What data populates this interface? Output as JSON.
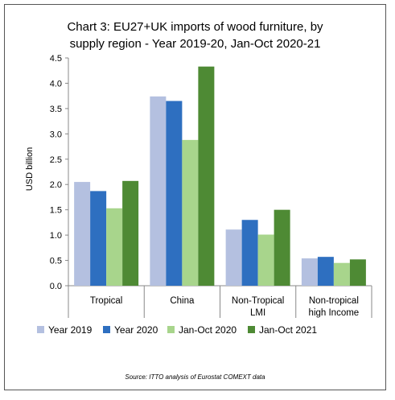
{
  "chart_data": {
    "type": "bar",
    "title_line1": "Chart 3: EU27+UK imports of wood furniture, by",
    "title_line2": "supply region - Year 2019-20, Jan-Oct 2020-21",
    "ylabel": "USD billion",
    "ylim": [
      0,
      4.5
    ],
    "yticks": [
      "0.0",
      "0.5",
      "1.0",
      "1.5",
      "2.0",
      "2.5",
      "3.0",
      "3.5",
      "4.0",
      "4.5"
    ],
    "categories": [
      [
        "Tropical"
      ],
      [
        "China"
      ],
      [
        "Non-Tropical",
        "LMI"
      ],
      [
        "Non-tropical",
        "high Income"
      ]
    ],
    "series": [
      {
        "name": "Year 2019",
        "color": "#b4c0e0",
        "values": [
          2.05,
          3.74,
          1.11,
          0.54
        ]
      },
      {
        "name": "Year 2020",
        "color": "#2e6fc0",
        "values": [
          1.87,
          3.65,
          1.3,
          0.57
        ]
      },
      {
        "name": "Jan-Oct 2020",
        "color": "#a8d58c",
        "values": [
          1.53,
          2.88,
          1.01,
          0.45
        ]
      },
      {
        "name": "Jan-Oct 2021",
        "color": "#4e8a34",
        "values": [
          2.07,
          4.33,
          1.5,
          0.52
        ]
      }
    ],
    "grid": false,
    "legend_position": "bottom"
  },
  "source": "Source: ITTO analysis of Eurostat COMEXT data"
}
